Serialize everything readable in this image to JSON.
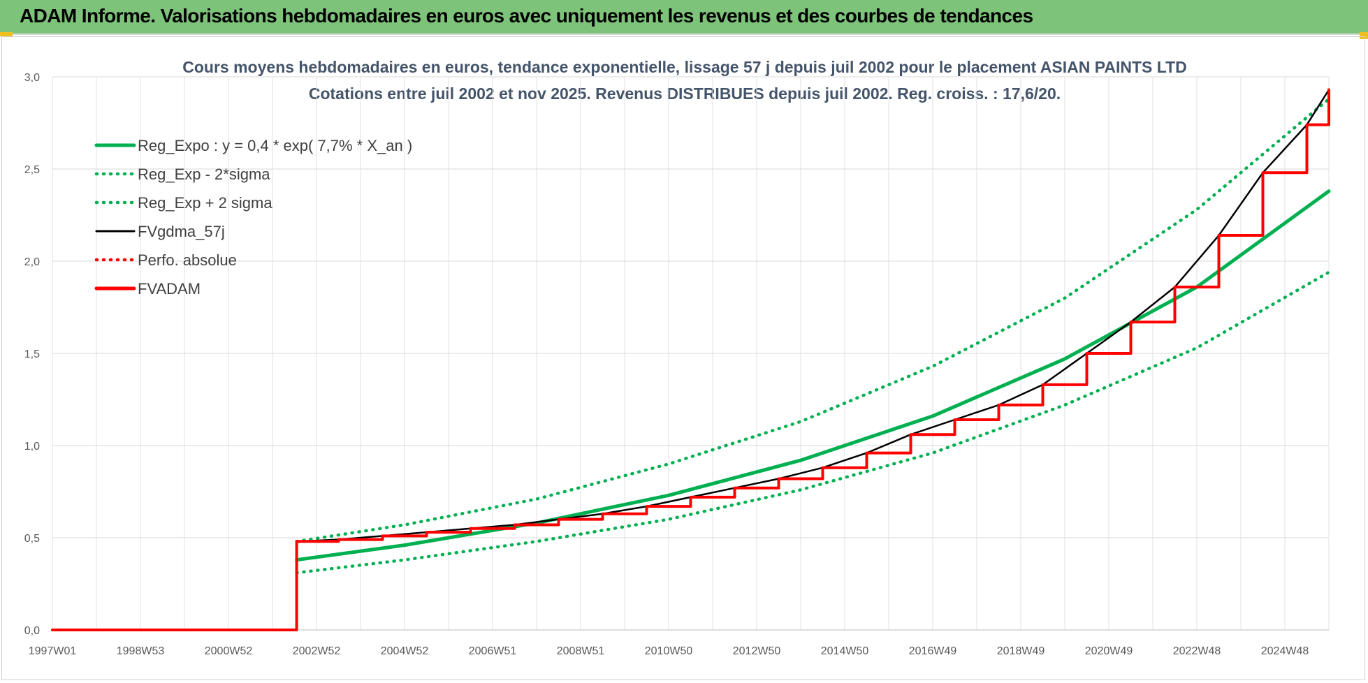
{
  "header": {
    "title": "ADAM Informe. Valorisations hebdomadaires en euros avec uniquement les revenus et des courbes de tendances"
  },
  "chart_data": {
    "type": "line",
    "title_line1": "Cours moyens hebdomadaires en euros, tendance exponentielle, lissage 57 j depuis juil 2002 pour le placement ASIAN PAINTS LTD",
    "title_line2": "Cotations entre juil 2002 et nov 2025. Revenus DISTRIBUES depuis juil 2002. Reg. croiss. : 17,6/20.",
    "xlabel": "",
    "ylabel": "",
    "x_tick_labels": [
      "1997W01",
      "1998W53",
      "2000W52",
      "2002W52",
      "2004W52",
      "2006W51",
      "2008W51",
      "2010W50",
      "2012W50",
      "2014W50",
      "2016W49",
      "2018W49",
      "2020W49",
      "2022W48",
      "2024W48"
    ],
    "x_range": [
      1997.0,
      2026.0
    ],
    "x_tick_positions": [
      1997,
      1999,
      2001,
      2003,
      2005,
      2007,
      2009,
      2011,
      2013,
      2015,
      2017,
      2019,
      2021,
      2023,
      2025
    ],
    "y_tick_labels": [
      "0,0",
      "0,5",
      "1,0",
      "1,5",
      "2,0",
      "2,5",
      "3,0"
    ],
    "ylim": [
      0,
      3
    ],
    "grid": true,
    "legend_position": "top-left",
    "series": [
      {
        "name": "Reg_Expo : y = 0,4 * exp( 7,7% *  X_an )",
        "color": "#00b050",
        "style": "solid",
        "x": [
          2002.55,
          2005,
          2008,
          2011,
          2014,
          2017,
          2020,
          2023,
          2026.0
        ],
        "y": [
          0.38,
          0.46,
          0.58,
          0.73,
          0.92,
          1.16,
          1.47,
          1.86,
          2.38
        ]
      },
      {
        "name": "Reg_Exp - 2*sigma",
        "color": "#00b050",
        "style": "dotted",
        "x": [
          2002.55,
          2005,
          2008,
          2011,
          2014,
          2017,
          2020,
          2023,
          2026.0
        ],
        "y": [
          0.31,
          0.38,
          0.48,
          0.6,
          0.76,
          0.96,
          1.22,
          1.53,
          1.94
        ]
      },
      {
        "name": "Reg_Exp + 2 sigma",
        "color": "#00b050",
        "style": "dotted",
        "x": [
          2002.55,
          2005,
          2008,
          2011,
          2014,
          2017,
          2020,
          2023,
          2026.0
        ],
        "y": [
          0.48,
          0.57,
          0.71,
          0.9,
          1.13,
          1.43,
          1.8,
          2.28,
          2.88
        ]
      },
      {
        "name": "FVgdma_57j",
        "color": "#000000",
        "style": "solid",
        "width": 2.5,
        "x": [
          2002.6,
          2003.5,
          2004.5,
          2005.5,
          2006.5,
          2007.5,
          2008.5,
          2009.5,
          2010.5,
          2011.5,
          2012.5,
          2013.5,
          2014.5,
          2015.5,
          2016.5,
          2017.5,
          2018.5,
          2019.5,
          2020.5,
          2021.5,
          2022.5,
          2023.5,
          2024.5,
          2025.5,
          2026.0
        ],
        "y": [
          0.48,
          0.49,
          0.51,
          0.53,
          0.55,
          0.57,
          0.6,
          0.63,
          0.67,
          0.72,
          0.77,
          0.82,
          0.88,
          0.96,
          1.06,
          1.14,
          1.22,
          1.33,
          1.5,
          1.67,
          1.86,
          2.14,
          2.48,
          2.74,
          2.93
        ]
      },
      {
        "name": "Perfo. absolue",
        "color": "#ff0000",
        "style": "dotted",
        "x": [],
        "y": []
      },
      {
        "name": "FVADAM",
        "color": "#ff0000",
        "style": "solid-step",
        "width": 4,
        "x": [
          1997.0,
          2002.55,
          2002.55,
          2003.5,
          2004.5,
          2005.5,
          2006.5,
          2007.5,
          2008.5,
          2009.5,
          2010.5,
          2011.5,
          2012.5,
          2013.5,
          2014.5,
          2015.5,
          2016.5,
          2017.5,
          2018.5,
          2019.5,
          2020.5,
          2021.5,
          2022.5,
          2023.5,
          2024.5,
          2025.5,
          2026.0
        ],
        "y": [
          0.0,
          0.0,
          0.48,
          0.49,
          0.51,
          0.53,
          0.55,
          0.57,
          0.6,
          0.63,
          0.67,
          0.72,
          0.77,
          0.82,
          0.88,
          0.96,
          1.06,
          1.14,
          1.22,
          1.33,
          1.5,
          1.67,
          1.86,
          2.14,
          2.48,
          2.74,
          2.93
        ]
      }
    ]
  }
}
